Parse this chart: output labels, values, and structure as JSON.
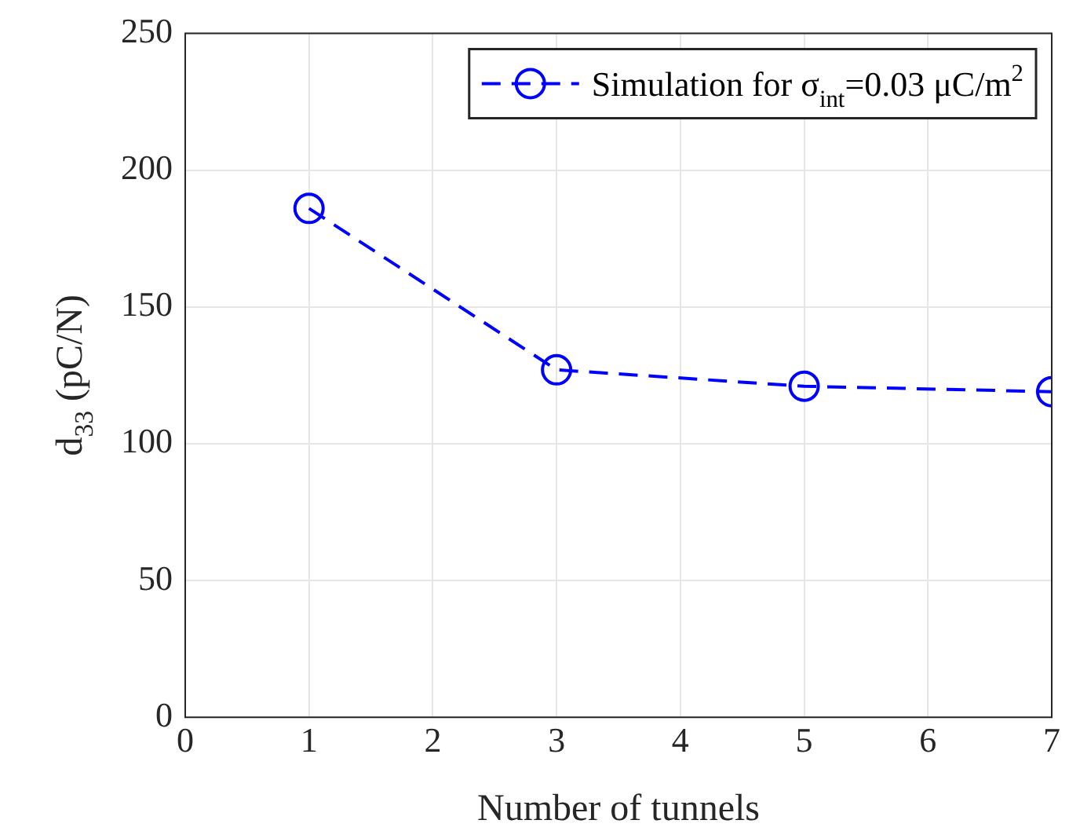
{
  "chart_data": {
    "type": "line",
    "xlabel": "Number of tunnels",
    "ylabel": "d$_{33}$ (pC/N)",
    "x": [
      1,
      3,
      5,
      7
    ],
    "series": [
      {
        "name": "Simulation for σ$_{int}$=0.03 μC/m$^{2}$",
        "color": "#0000ff",
        "values": [
          186,
          127,
          121,
          119
        ]
      }
    ],
    "xlim": [
      0,
      7
    ],
    "xticks": [
      0,
      1,
      2,
      3,
      4,
      5,
      6,
      7
    ],
    "ylim": [
      0,
      250
    ],
    "yticks": [
      0,
      50,
      100,
      150,
      200,
      250
    ],
    "grid": true,
    "legend": "top right",
    "marker": "circle",
    "line_style": "dashed"
  }
}
